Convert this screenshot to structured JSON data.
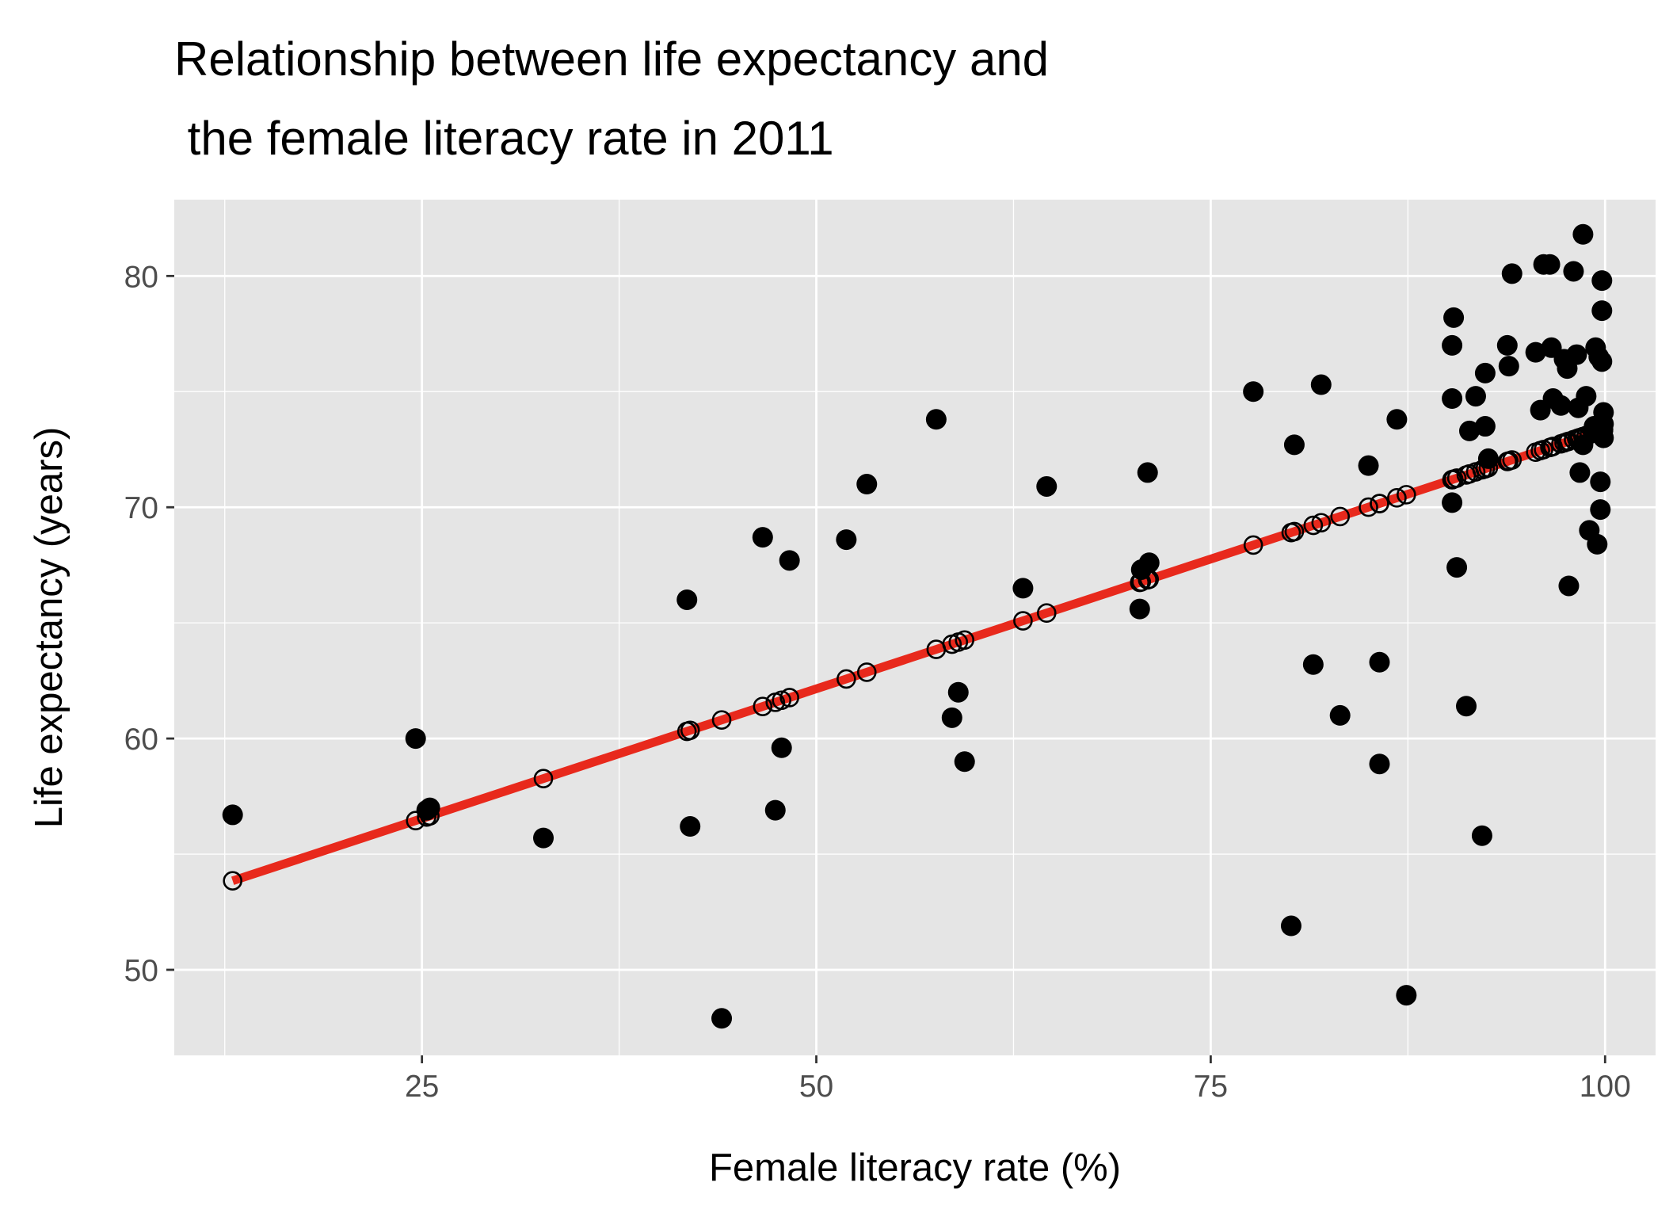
{
  "chart_data": {
    "type": "scatter",
    "title_lines": [
      "Relationship between life expectancy and",
      " the female literacy rate in 2011"
    ],
    "xlabel": "Female literacy rate (%)",
    "ylabel": "Life expectancy (years)",
    "xlim": [
      9.3,
      103.2
    ],
    "ylim": [
      46.3,
      83.3
    ],
    "x_ticks": [
      25,
      50,
      75,
      100
    ],
    "x_tick_labels": [
      "25",
      "50",
      "75",
      "100"
    ],
    "y_ticks": [
      50,
      60,
      70,
      80
    ],
    "y_tick_labels": [
      "50",
      "60",
      "70",
      "80"
    ],
    "grid": true,
    "legend": "none",
    "colors": {
      "panel": "#e5e5e5",
      "grid": "#ffffff",
      "points": "#000000",
      "fit_line": "#e8291c",
      "fitted_stroke": "#000000"
    },
    "fit_line": {
      "slope": 0.2244,
      "intercept": 50.93,
      "x_range": [
        13.0,
        99.8
      ]
    },
    "series": [
      {
        "values": [
          [
            13.0,
            56.7
          ],
          [
            24.6,
            60.0
          ],
          [
            25.3,
            56.9
          ],
          [
            25.5,
            57.0
          ],
          [
            32.7,
            55.7
          ],
          [
            41.8,
            66.0
          ],
          [
            42.0,
            56.2
          ],
          [
            44.0,
            47.9
          ],
          [
            46.6,
            68.7
          ],
          [
            47.4,
            56.9
          ],
          [
            47.8,
            59.6
          ],
          [
            48.3,
            67.7
          ],
          [
            51.9,
            68.6
          ],
          [
            53.2,
            71.0
          ],
          [
            57.6,
            73.8
          ],
          [
            58.6,
            60.9
          ],
          [
            59.0,
            62.0
          ],
          [
            59.4,
            59.0
          ],
          [
            63.1,
            66.5
          ],
          [
            64.6,
            70.9
          ],
          [
            70.5,
            65.6
          ],
          [
            70.6,
            67.3
          ],
          [
            71.0,
            71.5
          ],
          [
            71.1,
            67.6
          ],
          [
            77.7,
            75.0
          ],
          [
            80.1,
            51.9
          ],
          [
            80.3,
            72.7
          ],
          [
            81.5,
            63.2
          ],
          [
            82.0,
            75.3
          ],
          [
            83.2,
            61.0
          ],
          [
            85.0,
            71.8
          ],
          [
            85.7,
            63.3
          ],
          [
            85.7,
            58.9
          ],
          [
            86.8,
            73.8
          ],
          [
            87.4,
            48.9
          ],
          [
            90.3,
            77.0
          ],
          [
            90.3,
            74.7
          ],
          [
            90.4,
            78.2
          ],
          [
            90.3,
            70.2
          ],
          [
            90.6,
            67.4
          ],
          [
            91.2,
            61.4
          ],
          [
            91.4,
            73.3
          ],
          [
            91.8,
            74.8
          ],
          [
            92.2,
            55.8
          ],
          [
            92.4,
            75.8
          ],
          [
            92.4,
            73.5
          ],
          [
            92.6,
            72.1
          ],
          [
            93.8,
            77.0
          ],
          [
            93.9,
            76.1
          ],
          [
            94.1,
            80.1
          ],
          [
            95.6,
            76.7
          ],
          [
            95.9,
            74.2
          ],
          [
            96.1,
            80.5
          ],
          [
            96.5,
            80.5
          ],
          [
            96.6,
            76.9
          ],
          [
            96.7,
            74.7
          ],
          [
            97.2,
            74.4
          ],
          [
            97.4,
            76.4
          ],
          [
            97.6,
            76.0
          ],
          [
            97.7,
            66.6
          ],
          [
            98.0,
            80.2
          ],
          [
            98.2,
            76.6
          ],
          [
            98.3,
            74.3
          ],
          [
            98.4,
            71.5
          ],
          [
            98.6,
            81.8
          ],
          [
            98.8,
            74.8
          ],
          [
            98.6,
            72.7
          ],
          [
            99.0,
            69.0
          ],
          [
            99.3,
            73.5
          ],
          [
            99.4,
            76.9
          ],
          [
            99.5,
            68.4
          ],
          [
            99.6,
            76.5
          ],
          [
            99.7,
            71.1
          ],
          [
            99.7,
            69.9
          ],
          [
            99.8,
            79.8
          ],
          [
            99.8,
            78.5
          ],
          [
            99.8,
            76.3
          ],
          [
            99.9,
            73.0
          ],
          [
            99.9,
            74.1
          ],
          [
            99.9,
            73.6
          ]
        ]
      }
    ]
  }
}
